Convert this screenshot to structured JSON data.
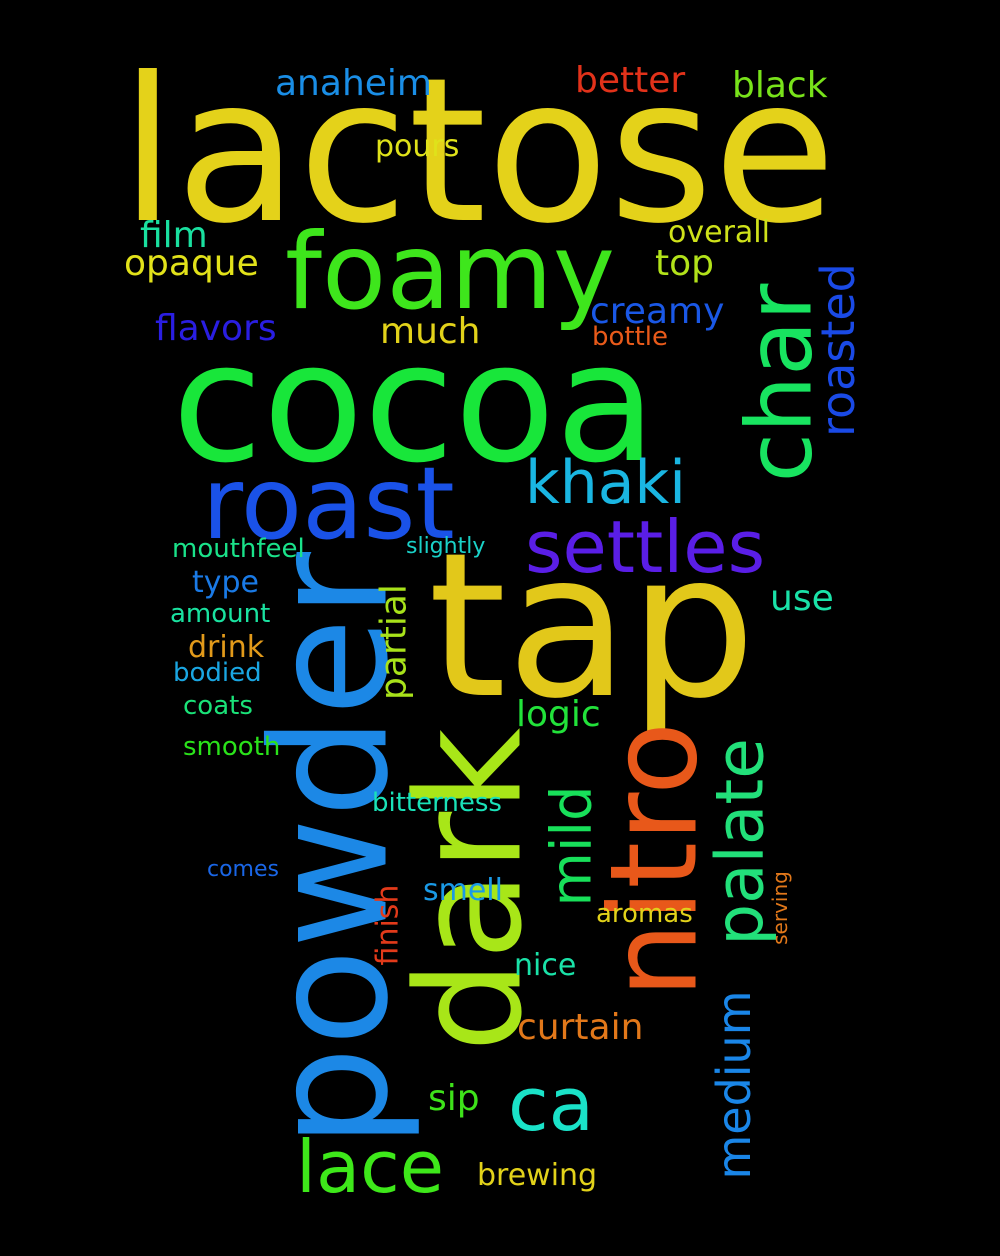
{
  "words": [
    {
      "text": "lactose",
      "color": "#e4d21a"
    },
    {
      "text": "cocoa",
      "color": "#18e63a"
    },
    {
      "text": "tap",
      "color": "#e2c81a"
    },
    {
      "text": "powder",
      "color": "#1c88e6"
    },
    {
      "text": "dark",
      "color": "#a8e618"
    },
    {
      "text": "nitro",
      "color": "#e8581a"
    },
    {
      "text": "foamy",
      "color": "#3ee61c"
    },
    {
      "text": "roast",
      "color": "#1a52e8"
    },
    {
      "text": "char",
      "color": "#18e460"
    },
    {
      "text": "settles",
      "color": "#5a1ee6"
    },
    {
      "text": "palate",
      "color": "#22e07a"
    },
    {
      "text": "khaki",
      "color": "#1ab6e2"
    },
    {
      "text": "lace",
      "color": "#3ee81a"
    },
    {
      "text": "roasted",
      "color": "#1a4ae6"
    },
    {
      "text": "mild",
      "color": "#18e05a"
    },
    {
      "text": "medium",
      "color": "#1a86e8"
    },
    {
      "text": "ca",
      "color": "#1ae2c8"
    },
    {
      "text": "anaheim",
      "color": "#1a8ee6"
    },
    {
      "text": "better",
      "color": "#e2321a"
    },
    {
      "text": "black",
      "color": "#78e21a"
    },
    {
      "text": "pours",
      "color": "#dfe21a"
    },
    {
      "text": "film",
      "color": "#1ae0a0"
    },
    {
      "text": "overall",
      "color": "#cfe21a"
    },
    {
      "text": "opaque",
      "color": "#e2e21a"
    },
    {
      "text": "top",
      "color": "#b2e21a"
    },
    {
      "text": "creamy",
      "color": "#1a58e6"
    },
    {
      "text": "flavors",
      "color": "#2a1ee2"
    },
    {
      "text": "much",
      "color": "#e2d21a"
    },
    {
      "text": "bottle",
      "color": "#e85a1a"
    },
    {
      "text": "mouthfeel",
      "color": "#1ae28a"
    },
    {
      "text": "slightly",
      "color": "#1ad2c8"
    },
    {
      "text": "type",
      "color": "#1a7ae6"
    },
    {
      "text": "use",
      "color": "#1ae2a8"
    },
    {
      "text": "partial",
      "color": "#a8e21a"
    },
    {
      "text": "amount",
      "color": "#1ae2a0"
    },
    {
      "text": "drink",
      "color": "#e29a1a"
    },
    {
      "text": "bodied",
      "color": "#1aa6e2"
    },
    {
      "text": "logic",
      "color": "#22e23a"
    },
    {
      "text": "coats",
      "color": "#1ae278"
    },
    {
      "text": "smooth",
      "color": "#2ae21a"
    },
    {
      "text": "bitterness",
      "color": "#1ae2b8"
    },
    {
      "text": "comes",
      "color": "#1a66e6"
    },
    {
      "text": "finish",
      "color": "#e23a1a"
    },
    {
      "text": "smell",
      "color": "#1a9ae6"
    },
    {
      "text": "serving",
      "color": "#e2781a"
    },
    {
      "text": "aromas",
      "color": "#e2d21a"
    },
    {
      "text": "nice",
      "color": "#1ae2a8"
    },
    {
      "text": "curtain",
      "color": "#e2781a"
    },
    {
      "text": "sip",
      "color": "#3ee21a"
    },
    {
      "text": "brewing",
      "color": "#e2d21a"
    }
  ]
}
